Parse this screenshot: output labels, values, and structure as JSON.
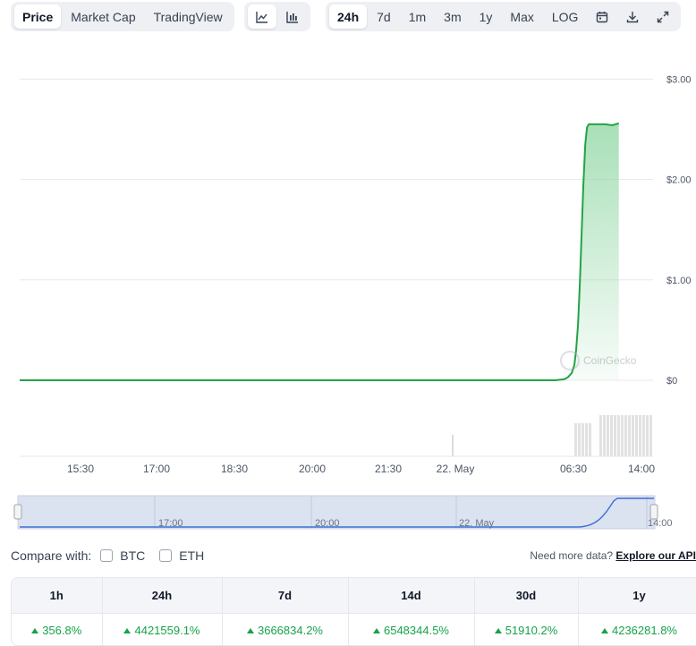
{
  "toolbar": {
    "view_tabs": [
      "Price",
      "Market Cap",
      "TradingView"
    ],
    "range_tabs": [
      "24h",
      "7d",
      "1m",
      "3m",
      "1y",
      "Max",
      "LOG"
    ],
    "icons": [
      "line-chart-icon",
      "candlestick-chart-icon",
      "calendar-icon",
      "download-icon",
      "expand-icon"
    ]
  },
  "watermark": "CoinGecko",
  "chart_data": {
    "type": "area",
    "y_ticks": [
      "$3.00",
      "$2.00",
      "$1.00",
      "$0"
    ],
    "x_ticks": [
      "15:30",
      "17:00",
      "18:30",
      "20:00",
      "21:30",
      "22. May",
      "06:30",
      "14:00"
    ],
    "ylim": [
      0,
      3
    ],
    "series": [
      {
        "x_hours": [
          14.5,
          16,
          18,
          20,
          22,
          24,
          26,
          28,
          29.5,
          30.0,
          30.2,
          30.4,
          30.6,
          30.8,
          31.0,
          31.2,
          31.4,
          31.6,
          31.8,
          32.0,
          32.2,
          32.5,
          33,
          33.5,
          34,
          34.8,
          35.5
        ],
        "values": [
          0,
          0,
          0,
          0,
          0,
          0,
          0,
          0,
          0,
          0.01,
          0.03,
          0.07,
          0.15,
          0.3,
          0.55,
          0.95,
          1.45,
          1.95,
          2.35,
          2.52,
          2.55,
          2.55,
          2.55,
          2.55,
          2.55,
          2.54,
          2.56
        ]
      }
    ],
    "colors": {
      "line": "#22a447",
      "fill_top": "#9fdcb0",
      "grid": "#e8e8e8"
    },
    "volume_bars_present": true
  },
  "navigator": {
    "x_ticks": [
      "17:00",
      "20:00",
      "22. May",
      "14:00"
    ]
  },
  "compare": {
    "label": "Compare with:",
    "options": [
      "BTC",
      "ETH"
    ],
    "more_data_text": "Need more data?",
    "more_data_link": "Explore our API"
  },
  "changes": {
    "headers": [
      "1h",
      "24h",
      "7d",
      "14d",
      "30d",
      "1y"
    ],
    "values": [
      "356.8%",
      "4421559.1%",
      "3666834.2%",
      "6548344.5%",
      "51910.2%",
      "4236281.8%"
    ]
  }
}
